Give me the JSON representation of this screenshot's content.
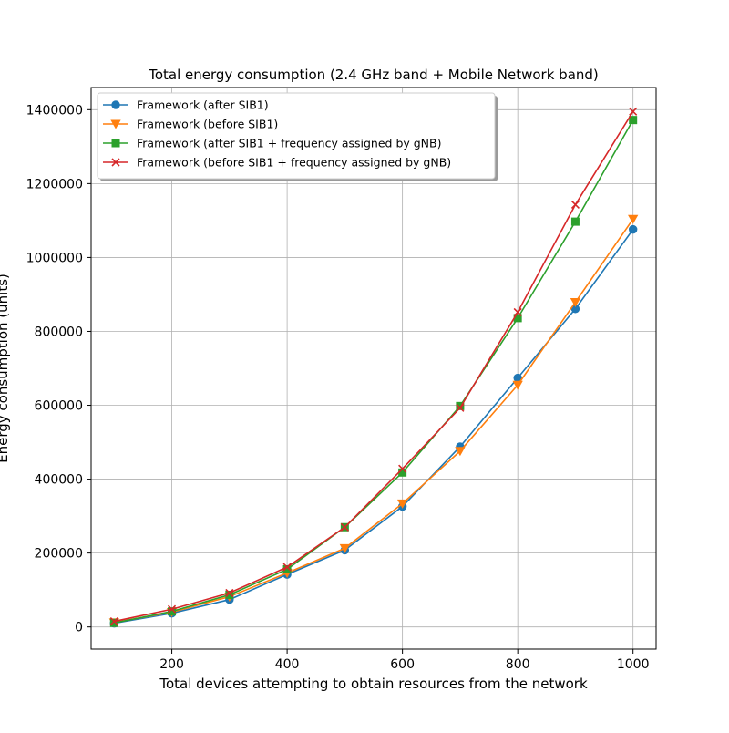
{
  "chart_data": {
    "type": "line",
    "title": "Total energy consumption (2.4 GHz band + Mobile Network band)",
    "xlabel": "Total devices attempting to obtain resources from the network",
    "ylabel": "Energy consumption (units)",
    "x": [
      100,
      200,
      300,
      400,
      500,
      600,
      700,
      800,
      900,
      1000
    ],
    "xlim": [
      60,
      1040
    ],
    "ylim": [
      -60000,
      1460000
    ],
    "xticks": [
      200,
      400,
      600,
      800,
      1000
    ],
    "yticks": [
      0,
      200000,
      400000,
      600000,
      800000,
      1000000,
      1200000,
      1400000
    ],
    "grid": true,
    "legend_position": "top-left",
    "series": [
      {
        "name": "Framework (after SIB1)",
        "color": "#1f77b4",
        "marker": "circle",
        "values": [
          10000,
          37000,
          74000,
          142000,
          208000,
          326000,
          488000,
          674000,
          861000,
          1076000
        ]
      },
      {
        "name": "Framework (before SIB1)",
        "color": "#ff7f0e",
        "marker": "triangle-down",
        "values": [
          12000,
          40000,
          82000,
          146000,
          213000,
          334000,
          476000,
          655000,
          879000,
          1104000
        ]
      },
      {
        "name": "Framework (after SIB1 + frequency assigned by gNB)",
        "color": "#2ca02c",
        "marker": "square",
        "values": [
          11000,
          42000,
          87000,
          156000,
          270000,
          418000,
          598000,
          836000,
          1097000,
          1372000
        ]
      },
      {
        "name": "Framework (before SIB1 + frequency assigned by gNB)",
        "color": "#d62728",
        "marker": "x",
        "values": [
          15000,
          48000,
          92000,
          162000,
          270000,
          428000,
          593000,
          852000,
          1143000,
          1395000
        ]
      }
    ]
  }
}
